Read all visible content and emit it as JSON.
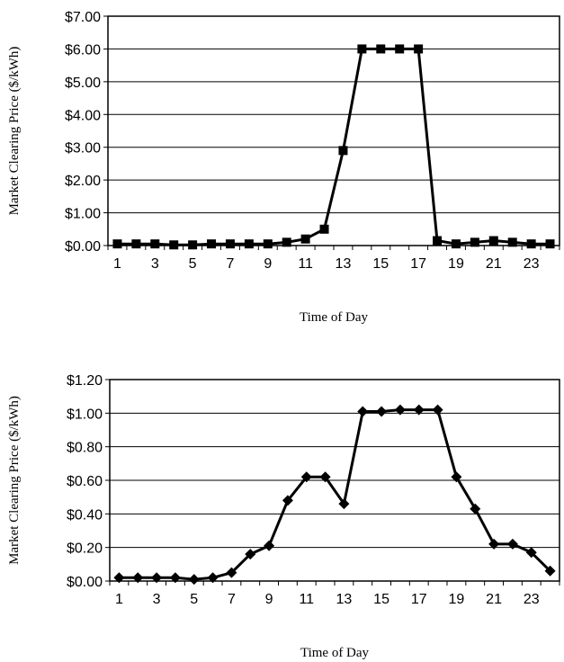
{
  "chart_data": [
    {
      "type": "line",
      "marker": "square",
      "xlabel": "Time of Day",
      "ylabel": "Market Clearing Price ($/kWh)",
      "x": [
        1,
        2,
        3,
        4,
        5,
        6,
        7,
        8,
        9,
        10,
        11,
        12,
        13,
        14,
        15,
        16,
        17,
        18,
        19,
        20,
        21,
        22,
        23,
        24
      ],
      "x_tick_labels": [
        "1",
        "3",
        "5",
        "7",
        "9",
        "11",
        "13",
        "15",
        "17",
        "19",
        "21",
        "23"
      ],
      "y_tick_labels": [
        "$0.00",
        "$1.00",
        "$2.00",
        "$3.00",
        "$4.00",
        "$5.00",
        "$6.00",
        "$7.00"
      ],
      "ylim": [
        0,
        7
      ],
      "grid": "horizontal",
      "values": [
        0.05,
        0.05,
        0.05,
        0.02,
        0.02,
        0.05,
        0.05,
        0.05,
        0.05,
        0.1,
        0.2,
        0.5,
        2.9,
        6.0,
        6.0,
        6.0,
        6.0,
        0.15,
        0.05,
        0.1,
        0.15,
        0.1,
        0.05,
        0.05
      ]
    },
    {
      "type": "line",
      "marker": "diamond",
      "xlabel": "Time of Day",
      "ylabel": "Market Clearing Price ($/kWh)",
      "x": [
        1,
        2,
        3,
        4,
        5,
        6,
        7,
        8,
        9,
        10,
        11,
        12,
        13,
        14,
        15,
        16,
        17,
        18,
        19,
        20,
        21,
        22,
        23,
        24
      ],
      "x_tick_labels": [
        "1",
        "3",
        "5",
        "7",
        "9",
        "11",
        "13",
        "15",
        "17",
        "19",
        "21",
        "23"
      ],
      "y_tick_labels": [
        "$0.00",
        "$0.20",
        "$0.40",
        "$0.60",
        "$0.80",
        "$1.00",
        "$1.20"
      ],
      "ylim": [
        0,
        1.2
      ],
      "grid": "horizontal",
      "values": [
        0.02,
        0.02,
        0.02,
        0.02,
        0.01,
        0.02,
        0.05,
        0.16,
        0.21,
        0.48,
        0.62,
        0.62,
        0.46,
        1.01,
        1.01,
        1.02,
        1.02,
        1.02,
        0.62,
        0.43,
        0.22,
        0.22,
        0.17,
        0.06
      ]
    }
  ]
}
